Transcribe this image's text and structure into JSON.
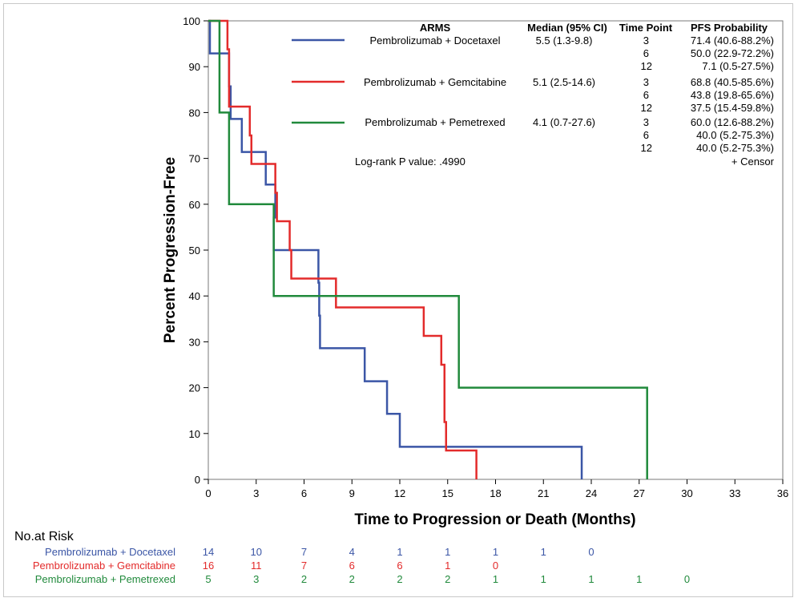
{
  "chart_data": {
    "type": "line",
    "subtype": "kaplan-meier step",
    "xlabel": "Time to Progression or Death (Months)",
    "ylabel": "Percent Progression-Free",
    "xlim": [
      0,
      36
    ],
    "ylim": [
      0,
      100
    ],
    "x_ticks": [
      0,
      3,
      6,
      9,
      12,
      15,
      18,
      21,
      24,
      27,
      30,
      33,
      36
    ],
    "y_ticks": [
      0,
      10,
      20,
      30,
      40,
      50,
      60,
      70,
      80,
      90,
      100
    ],
    "grid": false,
    "series": [
      {
        "name": "Pembrolizumab + Docetaxel",
        "color": "#3b56a6",
        "steps": [
          [
            0,
            100
          ],
          [
            0.1,
            92.9
          ],
          [
            1.3,
            85.7
          ],
          [
            1.4,
            78.6
          ],
          [
            2.1,
            71.4
          ],
          [
            3.6,
            64.3
          ],
          [
            4.2,
            57.1
          ],
          [
            4.1,
            50
          ],
          [
            6.9,
            42.9
          ],
          [
            6.95,
            35.7
          ],
          [
            7.0,
            28.6
          ],
          [
            9.8,
            21.4
          ],
          [
            11.2,
            14.3
          ],
          [
            12.0,
            7.1
          ],
          [
            23.4,
            0
          ]
        ],
        "end_x": 23.4
      },
      {
        "name": "Pembrolizumab + Gemcitabine",
        "color": "#e32b2b",
        "steps": [
          [
            0,
            100
          ],
          [
            1.2,
            93.8
          ],
          [
            1.3,
            81.3
          ],
          [
            2.6,
            75
          ],
          [
            2.7,
            68.8
          ],
          [
            4.2,
            62.5
          ],
          [
            4.3,
            56.3
          ],
          [
            5.1,
            50
          ],
          [
            5.2,
            43.8
          ],
          [
            8.0,
            37.5
          ],
          [
            13.5,
            31.3
          ],
          [
            14.6,
            25
          ],
          [
            14.8,
            12.5
          ],
          [
            14.9,
            6.3
          ],
          [
            16.8,
            0
          ]
        ],
        "end_x": 16.8
      },
      {
        "name": "Pembrolizumab + Pemetrexed",
        "color": "#218a3c",
        "steps": [
          [
            0,
            100
          ],
          [
            0.7,
            80
          ],
          [
            1.3,
            60
          ],
          [
            4.1,
            40
          ],
          [
            15.7,
            20
          ],
          [
            27.5,
            0
          ]
        ],
        "end_x": 27.5
      }
    ],
    "legend": {
      "position": "top-right",
      "headers": {
        "arms": "ARMS",
        "median": "Median (95% CI)",
        "time_point": "Time Point",
        "pfs": "PFS Probability"
      },
      "rows": [
        {
          "arm": "Pembrolizumab + Docetaxel",
          "median": "5.5 (1.3-9.8)",
          "points": [
            {
              "t": "3",
              "p": "71.4 (40.6-88.2%)"
            },
            {
              "t": "6",
              "p": "50.0 (22.9-72.2%)"
            },
            {
              "t": "12",
              "p": "7.1 (0.5-27.5%)"
            }
          ]
        },
        {
          "arm": "Pembrolizumab + Gemcitabine",
          "median": "5.1 (2.5-14.6)",
          "points": [
            {
              "t": "3",
              "p": "68.8 (40.5-85.6%)"
            },
            {
              "t": "6",
              "p": "43.8 (19.8-65.6%)"
            },
            {
              "t": "12",
              "p": "37.5 (15.4-59.8%)"
            }
          ]
        },
        {
          "arm": "Pembrolizumab + Pemetrexed",
          "median": "4.1 (0.7-27.6)",
          "points": [
            {
              "t": "3",
              "p": "60.0 (12.6-88.2%)"
            },
            {
              "t": "6",
              "p": "40.0 (5.2-75.3%)"
            },
            {
              "t": "12",
              "p": "40.0 (5.2-75.3%)"
            }
          ]
        }
      ],
      "logrank": "Log-rank P value:   .4990",
      "censor": "+ Censor"
    },
    "risk_table": {
      "title": "No.at Risk",
      "times": [
        0,
        3,
        6,
        9,
        12,
        15,
        18,
        21,
        24,
        27,
        30
      ],
      "rows": [
        {
          "name": "Pembrolizumab + Docetaxel",
          "color": "#3b56a6",
          "counts": [
            "14",
            "10",
            "7",
            "4",
            "1",
            "1",
            "1",
            "1",
            "0"
          ]
        },
        {
          "name": "Pembrolizumab + Gemcitabine",
          "color": "#e32b2b",
          "counts": [
            "16",
            "11",
            "7",
            "6",
            "6",
            "1",
            "0"
          ]
        },
        {
          "name": "Pembrolizumab + Pemetrexed",
          "color": "#218a3c",
          "counts": [
            "5",
            "3",
            "2",
            "2",
            "2",
            "2",
            "1",
            "1",
            "1",
            "1",
            "0"
          ]
        }
      ]
    }
  }
}
